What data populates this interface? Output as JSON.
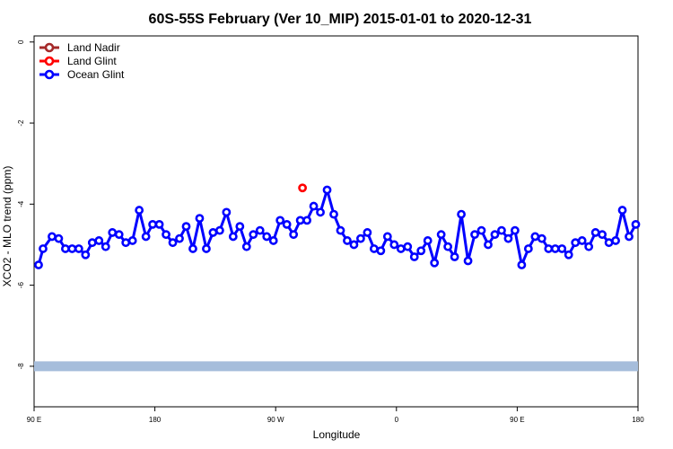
{
  "chart_data": {
    "type": "line",
    "title": "60S-55S February (Ver 10_MIP)   2015-01-01 to 2020-12-31",
    "xlabel": "Longitude",
    "ylabel": "XCO2 - MLO trend (ppm)",
    "xlim": [
      -90,
      180
    ],
    "ylim": [
      -9.0,
      0.15
    ],
    "x_ticks": [
      {
        "value": -90,
        "label": "90 E"
      },
      {
        "value": -36,
        "label": "180"
      },
      {
        "value": 18,
        "label": "90 W"
      },
      {
        "value": 72,
        "label": "0"
      },
      {
        "value": 126,
        "label": "90 E"
      },
      {
        "value": 180,
        "label": "180"
      }
    ],
    "y_ticks": [
      0,
      -2,
      -4,
      -6,
      -8
    ],
    "legend_position": "top-left",
    "grid": false,
    "series": [
      {
        "name": "Land Nadir",
        "color": "#a52a2a",
        "x": [],
        "y": []
      },
      {
        "name": "Land Glint",
        "color": "#ff0000",
        "x": [
          30
        ],
        "y": [
          -3.6
        ]
      },
      {
        "name": "Ocean Glint",
        "color": "#0000ff",
        "x": [
          -88,
          -86,
          -82,
          -79,
          -76,
          -73,
          -70,
          -67,
          -64,
          -61,
          -58,
          -55,
          -52,
          -49,
          -46,
          -43,
          -40,
          -37,
          -34,
          -31,
          -28,
          -25,
          -22,
          -19,
          -16,
          -13,
          -10,
          -7,
          -4,
          -1,
          2,
          5,
          8,
          11,
          14,
          17,
          20,
          23,
          26,
          29,
          32,
          35,
          38,
          41,
          44,
          47,
          50,
          53,
          56,
          59,
          62,
          65,
          68,
          71,
          74,
          77,
          80,
          83,
          86,
          89,
          92,
          95,
          98,
          101,
          104,
          107,
          110,
          113,
          116,
          119,
          122,
          125,
          128,
          131,
          134,
          137,
          140,
          143,
          146,
          149,
          152,
          155,
          158,
          161,
          164,
          167,
          170,
          173,
          176,
          179
        ],
        "y": [
          -5.5,
          -5.1,
          -4.8,
          -4.85,
          -5.1,
          -5.1,
          -5.1,
          -5.25,
          -4.95,
          -4.9,
          -5.05,
          -4.7,
          -4.75,
          -4.95,
          -4.9,
          -4.15,
          -4.8,
          -4.5,
          -4.5,
          -4.75,
          -4.95,
          -4.85,
          -4.55,
          -5.1,
          -4.35,
          -5.1,
          -4.7,
          -4.65,
          -4.2,
          -4.8,
          -4.55,
          -5.05,
          -4.75,
          -4.65,
          -4.8,
          -4.9,
          -4.4,
          -4.5,
          -4.75,
          -4.4,
          -4.4,
          -4.05,
          -4.2,
          -3.65,
          -4.25,
          -4.65,
          -4.9,
          -5.0,
          -4.85,
          -4.7,
          -5.1,
          -5.15,
          -4.8,
          -5.0,
          -5.1,
          -5.05,
          -5.3,
          -5.15,
          -4.9,
          -5.45,
          -4.75,
          -5.05,
          -5.3,
          -4.25,
          -5.4,
          -4.75,
          -4.65,
          -5.0,
          -4.75,
          -4.65,
          -4.85,
          -4.65,
          -5.5,
          -5.1,
          -4.8,
          -4.85,
          -5.1,
          -5.1,
          -5.1,
          -5.25,
          -4.95,
          -4.9,
          -5.05,
          -4.7,
          -4.75,
          -4.95,
          -4.9,
          -4.15,
          -4.8,
          -4.5
        ]
      }
    ],
    "reference_band": {
      "y": -8.0,
      "color": "#a6bddb"
    }
  }
}
